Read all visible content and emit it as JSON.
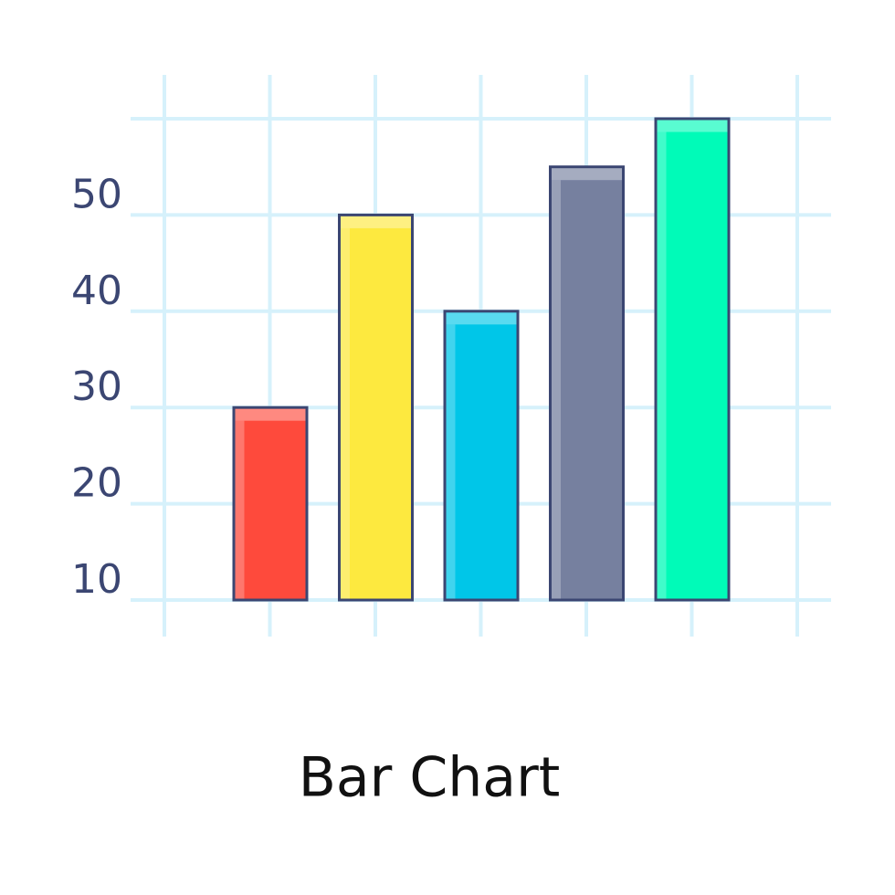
{
  "chart_data": {
    "type": "bar",
    "title": "Bar Chart",
    "categories": [
      null,
      null,
      null,
      null,
      null
    ],
    "values": [
      30,
      50,
      40,
      55,
      60
    ],
    "colors": [
      "#fe4a3c",
      "#fde93f",
      "#00c6e8",
      "#76809f",
      "#00fbb8"
    ],
    "ylim": [
      10,
      60
    ],
    "yticks": [
      10,
      20,
      30,
      40,
      50
    ],
    "grid": true
  }
}
